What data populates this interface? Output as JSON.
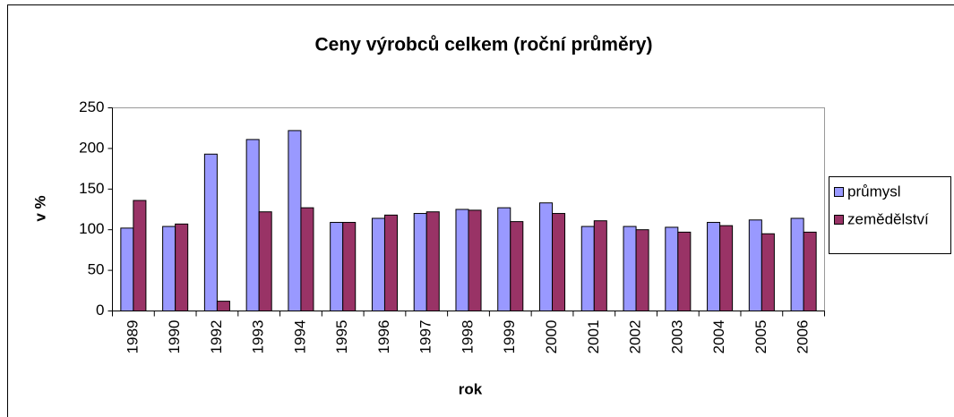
{
  "chart_data": {
    "type": "bar",
    "title": "Ceny výrobců celkem (roční průměry)",
    "x_label": "rok",
    "y_label": "v %",
    "categories": [
      "1989",
      "1990",
      "1992",
      "1993",
      "1994",
      "1995",
      "1996",
      "1997",
      "1998",
      "1999",
      "2000",
      "2001",
      "2002",
      "2003",
      "2004",
      "2005",
      "2006"
    ],
    "series": [
      {
        "name": "průmysl",
        "color": "#9999ff",
        "values": [
          102,
          104,
          193,
          211,
          222,
          109,
          114,
          120,
          125,
          127,
          133,
          104,
          104,
          103,
          109,
          112,
          114
        ]
      },
      {
        "name": "zemědělství",
        "color": "#993366",
        "values": [
          136,
          107,
          12,
          122,
          127,
          109,
          118,
          122,
          124,
          110,
          120,
          111,
          100,
          97,
          105,
          95,
          97
        ]
      }
    ],
    "ylim": [
      0,
      250
    ],
    "yticks": [
      0,
      50,
      100,
      150,
      200,
      250
    ],
    "legend": "right"
  }
}
